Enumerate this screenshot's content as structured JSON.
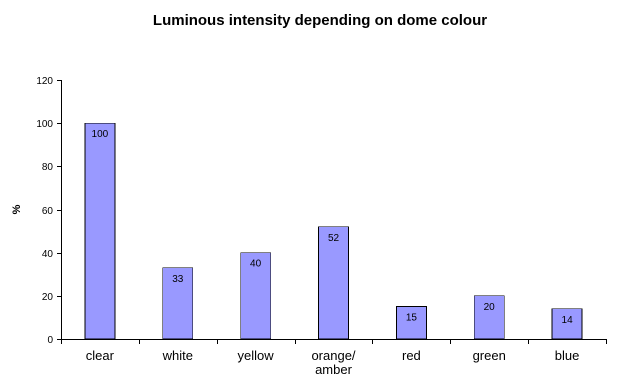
{
  "chart_data": {
    "type": "bar",
    "title": "Luminous intensity depending on dome colour",
    "xlabel": "",
    "ylabel": "%",
    "categories": [
      "clear",
      "white",
      "yellow",
      "orange/ amber",
      "red",
      "green",
      "blue"
    ],
    "category_lines": [
      [
        "clear"
      ],
      [
        "white"
      ],
      [
        "yellow"
      ],
      [
        "orange/",
        "amber"
      ],
      [
        "red"
      ],
      [
        "green"
      ],
      [
        "blue"
      ]
    ],
    "values": [
      100,
      33,
      40,
      52,
      15,
      20,
      14
    ],
    "data_labels": [
      "100",
      "33",
      "40",
      "52",
      "15",
      "20",
      "14"
    ],
    "ylim": [
      0,
      120
    ],
    "yticks": [
      0,
      20,
      40,
      60,
      80,
      100,
      120
    ],
    "grid": false,
    "legend": "none",
    "colors": {
      "bar_fill": "#9999ff",
      "bar_stroke": "#000000",
      "axis": "#000000",
      "background": "#ffffff"
    }
  }
}
